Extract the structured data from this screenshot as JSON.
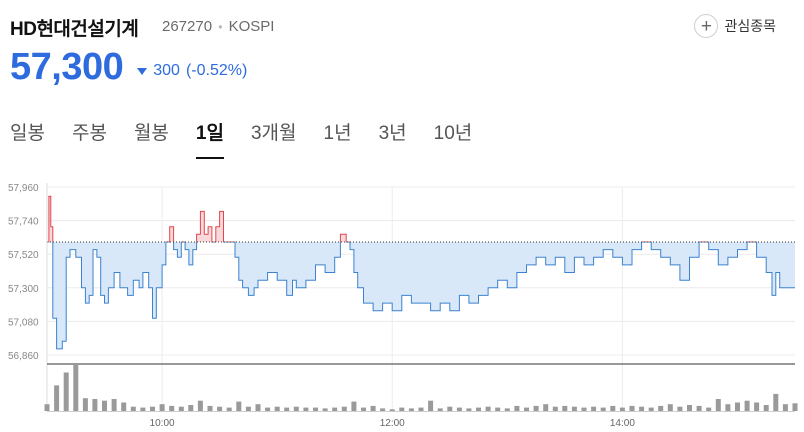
{
  "header": {
    "name": "HD현대건설기계",
    "code": "267270",
    "separator": "•",
    "market": "KOSPI",
    "watch_label": "관심종목",
    "watch_icon": "plus-circle-icon"
  },
  "price": {
    "current": "57,300",
    "change": "300",
    "change_pct": "(-0.52%)",
    "direction": "down",
    "color": "#2e6bde"
  },
  "tabs": [
    {
      "label": "일봉",
      "active": false
    },
    {
      "label": "주봉",
      "active": false
    },
    {
      "label": "월봉",
      "active": false
    },
    {
      "label": "1일",
      "active": true
    },
    {
      "label": "3개월",
      "active": false
    },
    {
      "label": "1년",
      "active": false
    },
    {
      "label": "3년",
      "active": false
    },
    {
      "label": "10년",
      "active": false
    }
  ],
  "chart_data": {
    "type": "area",
    "baseline": 57600,
    "ylim": [
      56860,
      57960
    ],
    "yticks": [
      57960,
      57740,
      57520,
      57300,
      57080,
      56860
    ],
    "ytick_labels": [
      "57,960",
      "57,740",
      "57,520",
      "57,300",
      "57,080",
      "56,860"
    ],
    "xlim": [
      "09:00",
      "15:30"
    ],
    "xticks": [
      "10:00",
      "12:00",
      "14:00"
    ],
    "up_color": "#e0474c",
    "down_color": "#3b82d0",
    "grid": true,
    "price_series": [
      [
        "09:00",
        57600
      ],
      [
        "09:01",
        57900
      ],
      [
        "09:02",
        57700
      ],
      [
        "09:03",
        57100
      ],
      [
        "09:05",
        56900
      ],
      [
        "09:08",
        56950
      ],
      [
        "09:10",
        57500
      ],
      [
        "09:12",
        57550
      ],
      [
        "09:15",
        57500
      ],
      [
        "09:18",
        57300
      ],
      [
        "09:20",
        57200
      ],
      [
        "09:22",
        57250
      ],
      [
        "09:24",
        57550
      ],
      [
        "09:26",
        57500
      ],
      [
        "09:28",
        57250
      ],
      [
        "09:30",
        57200
      ],
      [
        "09:32",
        57300
      ],
      [
        "09:35",
        57400
      ],
      [
        "09:38",
        57300
      ],
      [
        "09:40",
        57300
      ],
      [
        "09:42",
        57250
      ],
      [
        "09:45",
        57350
      ],
      [
        "09:48",
        57300
      ],
      [
        "09:50",
        57400
      ],
      [
        "09:53",
        57300
      ],
      [
        "09:55",
        57100
      ],
      [
        "09:57",
        57300
      ],
      [
        "10:00",
        57450
      ],
      [
        "10:02",
        57600
      ],
      [
        "10:04",
        57700
      ],
      [
        "10:06",
        57550
      ],
      [
        "10:08",
        57500
      ],
      [
        "10:10",
        57600
      ],
      [
        "10:12",
        57550
      ],
      [
        "10:14",
        57450
      ],
      [
        "10:16",
        57550
      ],
      [
        "10:18",
        57650
      ],
      [
        "10:20",
        57800
      ],
      [
        "10:22",
        57650
      ],
      [
        "10:24",
        57700
      ],
      [
        "10:26",
        57600
      ],
      [
        "10:28",
        57700
      ],
      [
        "10:30",
        57800
      ],
      [
        "10:32",
        57600
      ],
      [
        "10:35",
        57600
      ],
      [
        "10:38",
        57500
      ],
      [
        "10:40",
        57350
      ],
      [
        "10:42",
        57300
      ],
      [
        "10:45",
        57250
      ],
      [
        "10:48",
        57300
      ],
      [
        "10:50",
        57350
      ],
      [
        "10:55",
        57400
      ],
      [
        "11:00",
        57350
      ],
      [
        "11:05",
        57250
      ],
      [
        "11:08",
        57350
      ],
      [
        "11:10",
        57300
      ],
      [
        "11:15",
        57350
      ],
      [
        "11:20",
        57450
      ],
      [
        "11:25",
        57400
      ],
      [
        "11:30",
        57500
      ],
      [
        "11:33",
        57650
      ],
      [
        "11:36",
        57600
      ],
      [
        "11:38",
        57550
      ],
      [
        "11:40",
        57400
      ],
      [
        "11:42",
        57300
      ],
      [
        "11:45",
        57200
      ],
      [
        "11:50",
        57150
      ],
      [
        "11:55",
        57200
      ],
      [
        "12:00",
        57150
      ],
      [
        "12:05",
        57250
      ],
      [
        "12:10",
        57200
      ],
      [
        "12:15",
        57200
      ],
      [
        "12:20",
        57150
      ],
      [
        "12:25",
        57200
      ],
      [
        "12:30",
        57150
      ],
      [
        "12:35",
        57250
      ],
      [
        "12:40",
        57200
      ],
      [
        "12:45",
        57250
      ],
      [
        "12:50",
        57300
      ],
      [
        "12:55",
        57350
      ],
      [
        "13:00",
        57300
      ],
      [
        "13:05",
        57400
      ],
      [
        "13:10",
        57450
      ],
      [
        "13:15",
        57500
      ],
      [
        "13:20",
        57450
      ],
      [
        "13:25",
        57500
      ],
      [
        "13:30",
        57400
      ],
      [
        "13:35",
        57500
      ],
      [
        "13:40",
        57450
      ],
      [
        "13:45",
        57500
      ],
      [
        "13:50",
        57550
      ],
      [
        "13:55",
        57500
      ],
      [
        "14:00",
        57450
      ],
      [
        "14:05",
        57550
      ],
      [
        "14:10",
        57600
      ],
      [
        "14:15",
        57550
      ],
      [
        "14:20",
        57500
      ],
      [
        "14:25",
        57450
      ],
      [
        "14:30",
        57350
      ],
      [
        "14:35",
        57500
      ],
      [
        "14:40",
        57600
      ],
      [
        "14:45",
        57550
      ],
      [
        "14:50",
        57450
      ],
      [
        "14:55",
        57500
      ],
      [
        "15:00",
        57550
      ],
      [
        "15:05",
        57600
      ],
      [
        "15:10",
        57500
      ],
      [
        "15:15",
        57400
      ],
      [
        "15:18",
        57250
      ],
      [
        "15:20",
        57400
      ],
      [
        "15:22",
        57300
      ],
      [
        "15:30",
        57300
      ]
    ],
    "volume_series": [
      [
        "09:00",
        8
      ],
      [
        "09:05",
        30
      ],
      [
        "09:10",
        45
      ],
      [
        "09:15",
        55
      ],
      [
        "09:20",
        15
      ],
      [
        "09:25",
        14
      ],
      [
        "09:30",
        12
      ],
      [
        "09:35",
        14
      ],
      [
        "09:40",
        10
      ],
      [
        "09:45",
        5
      ],
      [
        "09:50",
        4
      ],
      [
        "09:55",
        5
      ],
      [
        "10:00",
        8
      ],
      [
        "10:05",
        6
      ],
      [
        "10:10",
        5
      ],
      [
        "10:15",
        7
      ],
      [
        "10:20",
        12
      ],
      [
        "10:25",
        6
      ],
      [
        "10:30",
        5
      ],
      [
        "10:35",
        4
      ],
      [
        "10:40",
        11
      ],
      [
        "10:45",
        5
      ],
      [
        "10:50",
        8
      ],
      [
        "10:55",
        4
      ],
      [
        "11:00",
        5
      ],
      [
        "11:05",
        4
      ],
      [
        "11:10",
        5
      ],
      [
        "11:15",
        4
      ],
      [
        "11:20",
        4
      ],
      [
        "11:25",
        3
      ],
      [
        "11:30",
        4
      ],
      [
        "11:35",
        5
      ],
      [
        "11:40",
        11
      ],
      [
        "11:45",
        4
      ],
      [
        "11:50",
        6
      ],
      [
        "11:55",
        3
      ],
      [
        "12:00",
        2
      ],
      [
        "12:05",
        4
      ],
      [
        "12:10",
        3
      ],
      [
        "12:15",
        4
      ],
      [
        "12:20",
        12
      ],
      [
        "12:25",
        3
      ],
      [
        "12:30",
        5
      ],
      [
        "12:35",
        4
      ],
      [
        "12:40",
        3
      ],
      [
        "12:45",
        4
      ],
      [
        "12:50",
        5
      ],
      [
        "12:55",
        4
      ],
      [
        "13:00",
        3
      ],
      [
        "13:05",
        6
      ],
      [
        "13:10",
        4
      ],
      [
        "13:15",
        6
      ],
      [
        "13:20",
        8
      ],
      [
        "13:25",
        5
      ],
      [
        "13:30",
        6
      ],
      [
        "13:35",
        5
      ],
      [
        "13:40",
        4
      ],
      [
        "13:45",
        5
      ],
      [
        "13:50",
        4
      ],
      [
        "13:55",
        6
      ],
      [
        "14:00",
        4
      ],
      [
        "14:05",
        6
      ],
      [
        "14:10",
        5
      ],
      [
        "14:15",
        4
      ],
      [
        "14:20",
        6
      ],
      [
        "14:25",
        8
      ],
      [
        "14:30",
        5
      ],
      [
        "14:35",
        7
      ],
      [
        "14:40",
        6
      ],
      [
        "14:45",
        4
      ],
      [
        "14:50",
        14
      ],
      [
        "14:55",
        8
      ],
      [
        "15:00",
        10
      ],
      [
        "15:05",
        12
      ],
      [
        "15:10",
        10
      ],
      [
        "15:15",
        7
      ],
      [
        "15:20",
        20
      ],
      [
        "15:25",
        8
      ],
      [
        "15:30",
        9
      ]
    ]
  }
}
